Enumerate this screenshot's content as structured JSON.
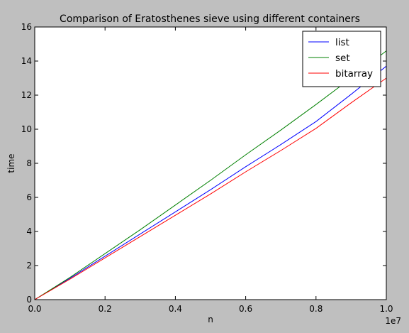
{
  "chart_data": {
    "type": "line",
    "title": "Comparison of Eratosthenes sieve using different containers",
    "xlabel": "n",
    "ylabel": "time",
    "x_offset_label": "1e7",
    "xlim": [
      0.0,
      1.0
    ],
    "ylim": [
      0,
      16
    ],
    "x_ticks": [
      "0.0",
      "0.2",
      "0.4",
      "0.6",
      "0.8",
      "1.0"
    ],
    "y_ticks": [
      "0",
      "2",
      "4",
      "6",
      "8",
      "10",
      "12",
      "14",
      "16"
    ],
    "grid": false,
    "legend_position": "top-right",
    "series": [
      {
        "name": "list",
        "color": "#0000ff",
        "x": [
          0.0,
          0.1,
          0.2,
          0.3,
          0.4,
          0.5,
          0.6,
          0.7,
          0.8,
          0.9,
          1.0
        ],
        "y": [
          0.0,
          1.25,
          2.55,
          3.85,
          5.15,
          6.45,
          7.8,
          9.1,
          10.45,
          12.05,
          13.7
        ]
      },
      {
        "name": "set",
        "color": "#008000",
        "x": [
          0.0,
          0.1,
          0.2,
          0.3,
          0.4,
          0.5,
          0.6,
          0.7,
          0.8,
          0.9,
          1.0
        ],
        "y": [
          0.0,
          1.3,
          2.7,
          4.1,
          5.55,
          7.0,
          8.5,
          9.95,
          11.45,
          13.0,
          14.6
        ]
      },
      {
        "name": "bitarray",
        "color": "#ff0000",
        "x": [
          0.0,
          0.1,
          0.2,
          0.3,
          0.4,
          0.5,
          0.6,
          0.7,
          0.8,
          0.9,
          1.0
        ],
        "y": [
          0.0,
          1.2,
          2.45,
          3.7,
          4.95,
          6.2,
          7.5,
          8.75,
          10.05,
          11.55,
          13.0
        ]
      }
    ]
  }
}
